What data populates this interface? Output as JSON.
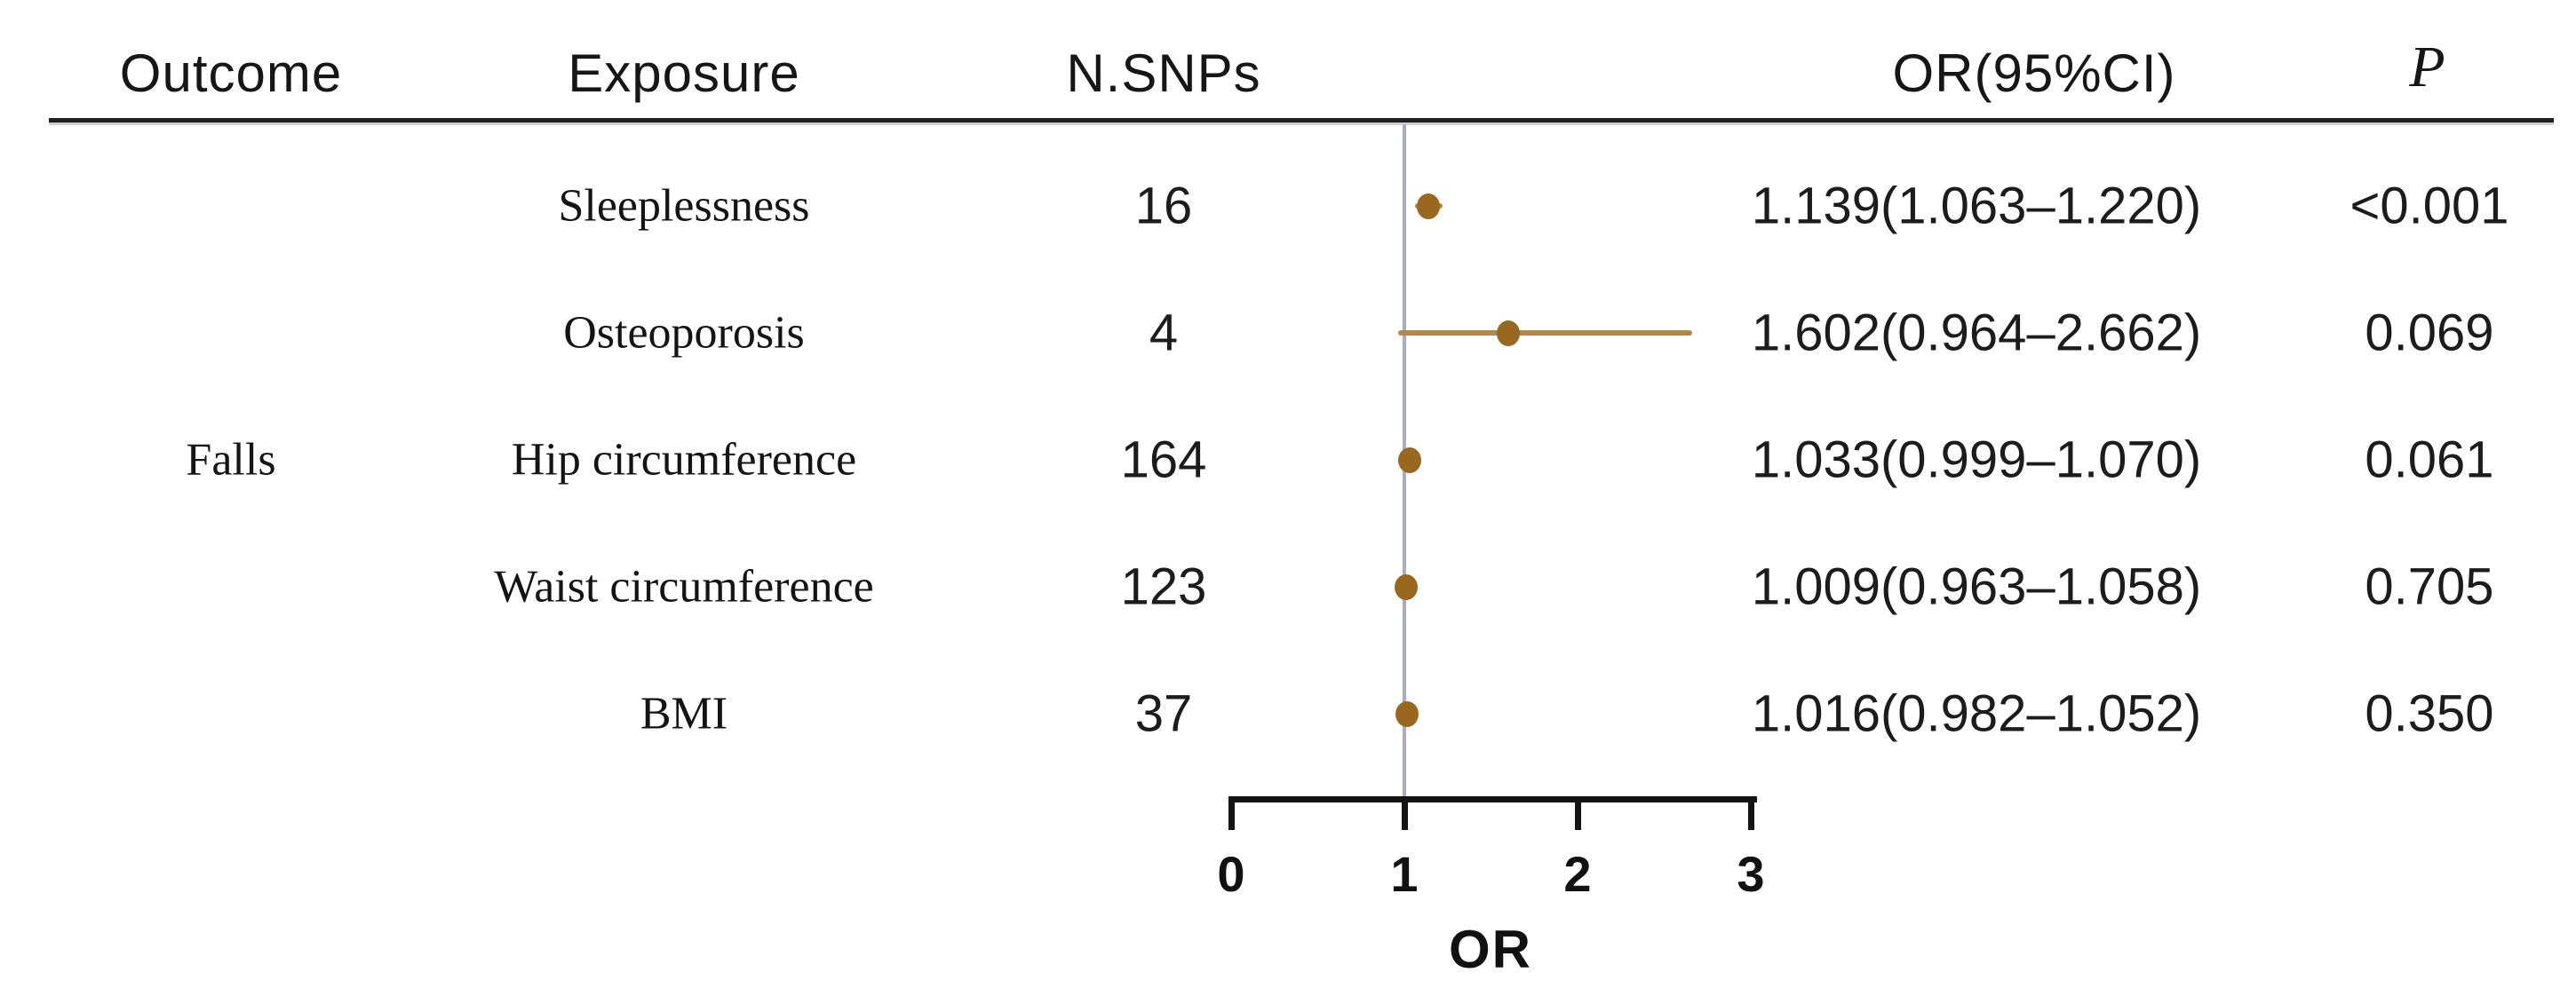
{
  "figure": {
    "type_note": "forest-plot",
    "colors": {
      "point": "#9a671f",
      "ci_line": "#b0894a",
      "reference_line": "#a9acbc",
      "axis": "#141414",
      "text": "#1c1c1c"
    }
  },
  "table": {
    "headers": [
      "Outcome",
      "Exposure",
      "N.SNPs",
      "OR(95%CI)",
      "P"
    ]
  },
  "chart_data": {
    "type": "scatter",
    "subtype": "forest",
    "outcome_group_label": "Falls",
    "xlabel": "OR",
    "xlim": [
      0,
      3
    ],
    "x_ticks": [
      "0",
      "1",
      "2",
      "3"
    ],
    "reference_line_x": 1,
    "legend": "none",
    "grid": "off",
    "rows": [
      {
        "exposure": "Sleeplessness",
        "n_snps": "16",
        "or": 1.139,
        "ci_low": 1.063,
        "ci_high": 1.22,
        "or_ci_text": "1.139(1.063–1.220)",
        "p": "<0.001"
      },
      {
        "exposure": "Osteoporosis",
        "n_snps": "4",
        "or": 1.602,
        "ci_low": 0.964,
        "ci_high": 2.662,
        "or_ci_text": "1.602(0.964–2.662)",
        "p": "0.069"
      },
      {
        "exposure": "Hip circumference",
        "n_snps": "164",
        "or": 1.033,
        "ci_low": 0.999,
        "ci_high": 1.07,
        "or_ci_text": "1.033(0.999–1.070)",
        "p": "0.061"
      },
      {
        "exposure": "Waist circumference",
        "n_snps": "123",
        "or": 1.009,
        "ci_low": 0.963,
        "ci_high": 1.058,
        "or_ci_text": "1.009(0.963–1.058)",
        "p": "0.705"
      },
      {
        "exposure": "BMI",
        "n_snps": "37",
        "or": 1.016,
        "ci_low": 0.982,
        "ci_high": 1.052,
        "or_ci_text": "1.016(0.982–1.052)",
        "p": "0.350"
      }
    ]
  }
}
